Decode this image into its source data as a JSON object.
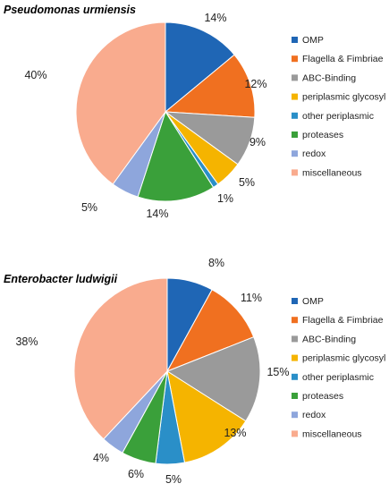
{
  "chart_data": [
    {
      "type": "pie",
      "title": "Pseudomonas urmiensis",
      "legend_position": "right",
      "slices": [
        {
          "label": "OMP",
          "value": 14,
          "display": "14%",
          "color": "#1f66b5"
        },
        {
          "label": "Flagella & Fimbriae",
          "value": 12,
          "display": "12%",
          "color": "#f07020"
        },
        {
          "label": "ABC-Binding",
          "value": 9,
          "display": "9%",
          "color": "#9a9a9a"
        },
        {
          "label": "periplasmic glycosyl",
          "value": 5,
          "display": "5%",
          "color": "#f5b400"
        },
        {
          "label": "other periplasmic",
          "value": 1,
          "display": "1%",
          "color": "#2a8fc8"
        },
        {
          "label": "proteases",
          "value": 14,
          "display": "14%",
          "color": "#3aa03a"
        },
        {
          "label": "redox",
          "value": 5,
          "display": "5%",
          "color": "#8ea6dc"
        },
        {
          "label": "miscellaneous",
          "value": 40,
          "display": "40%",
          "color": "#f9ab8e"
        }
      ]
    },
    {
      "type": "pie",
      "title": "Enterobacter ludwigii",
      "legend_position": "right",
      "slices": [
        {
          "label": "OMP",
          "value": 8,
          "display": "8%",
          "color": "#1f66b5"
        },
        {
          "label": "Flagella & Fimbriae",
          "value": 11,
          "display": "11%",
          "color": "#f07020"
        },
        {
          "label": "ABC-Binding",
          "value": 15,
          "display": "15%",
          "color": "#9a9a9a"
        },
        {
          "label": "periplasmic glycosyl",
          "value": 13,
          "display": "13%",
          "color": "#f5b400"
        },
        {
          "label": "other periplasmic",
          "value": 5,
          "display": "5%",
          "color": "#2a8fc8"
        },
        {
          "label": "proteases",
          "value": 6,
          "display": "6%",
          "color": "#3aa03a"
        },
        {
          "label": "redox",
          "value": 4,
          "display": "4%",
          "color": "#8ea6dc"
        },
        {
          "label": "miscellaneous",
          "value": 38,
          "display": "38%",
          "color": "#f9ab8e"
        }
      ]
    }
  ]
}
